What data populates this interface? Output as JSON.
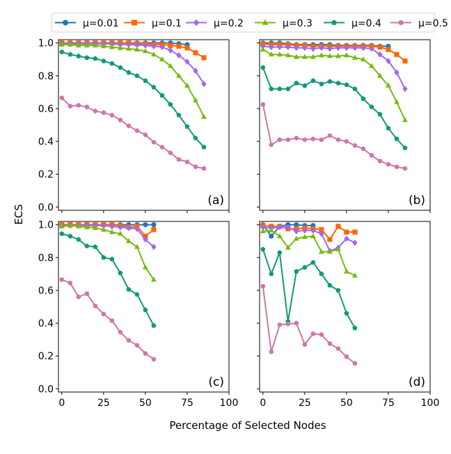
{
  "figure": {
    "ylabel": "ECS",
    "xlabel": "Percentage of Selected Nodes"
  },
  "legend": {
    "items": [
      {
        "label": "μ=0.01",
        "color": "#1f77b4",
        "marker": "circle"
      },
      {
        "label": "μ=0.1",
        "color": "#ff6600",
        "marker": "square"
      },
      {
        "label": "μ=0.2",
        "color": "#a066f5",
        "marker": "diamond"
      },
      {
        "label": "μ=0.3",
        "color": "#77bb11",
        "marker": "triangle"
      },
      {
        "label": "μ=0.4",
        "color": "#119977",
        "marker": "pentagon"
      },
      {
        "label": "μ=0.5",
        "color": "#cc77aa",
        "marker": "hexagon"
      }
    ]
  },
  "chart_data": [
    {
      "type": "line",
      "panel_label": "(a)",
      "xlim": [
        -2,
        100
      ],
      "ylim": [
        -0.02,
        1.02
      ],
      "xticks": [
        0,
        25,
        50,
        75,
        100
      ],
      "yticks": [
        0.0,
        0.2,
        0.4,
        0.6,
        0.8,
        1.0
      ],
      "series": [
        {
          "name": "μ=0.01",
          "x": [
            0,
            5,
            10,
            15,
            20,
            25,
            30,
            35,
            40,
            45,
            50,
            55,
            60,
            65,
            70,
            75
          ],
          "y": [
            1.0,
            1.0,
            1.0,
            1.0,
            1.0,
            1.0,
            1.0,
            1.0,
            1.0,
            1.0,
            1.0,
            1.0,
            1.0,
            1.0,
            0.995,
            0.99
          ]
        },
        {
          "name": "μ=0.1",
          "x": [
            0,
            5,
            10,
            15,
            20,
            25,
            30,
            35,
            40,
            45,
            50,
            55,
            60,
            65,
            70,
            75,
            80,
            85
          ],
          "y": [
            1.0,
            1.0,
            1.0,
            1.0,
            1.0,
            1.0,
            1.0,
            1.0,
            1.0,
            0.995,
            0.995,
            0.99,
            0.99,
            0.985,
            0.98,
            0.97,
            0.94,
            0.91
          ]
        },
        {
          "name": "μ=0.2",
          "x": [
            0,
            5,
            10,
            15,
            20,
            25,
            30,
            35,
            40,
            45,
            50,
            55,
            60,
            65,
            70,
            75,
            80,
            85
          ],
          "y": [
            0.995,
            0.995,
            0.995,
            0.995,
            0.995,
            0.995,
            0.995,
            0.99,
            0.99,
            0.99,
            0.985,
            0.98,
            0.975,
            0.955,
            0.925,
            0.885,
            0.83,
            0.75
          ]
        },
        {
          "name": "μ=0.3",
          "x": [
            0,
            5,
            10,
            15,
            20,
            25,
            30,
            35,
            40,
            45,
            50,
            55,
            60,
            65,
            70,
            75,
            80,
            85
          ],
          "y": [
            0.99,
            0.99,
            0.985,
            0.985,
            0.985,
            0.98,
            0.975,
            0.97,
            0.965,
            0.96,
            0.95,
            0.93,
            0.9,
            0.86,
            0.8,
            0.74,
            0.65,
            0.55
          ]
        },
        {
          "name": "μ=0.4",
          "x": [
            0,
            5,
            10,
            15,
            20,
            25,
            30,
            35,
            40,
            45,
            50,
            55,
            60,
            65,
            70,
            75,
            80,
            85
          ],
          "y": [
            0.945,
            0.93,
            0.92,
            0.91,
            0.905,
            0.89,
            0.875,
            0.85,
            0.82,
            0.8,
            0.77,
            0.73,
            0.68,
            0.625,
            0.56,
            0.49,
            0.42,
            0.365
          ]
        },
        {
          "name": "μ=0.5",
          "x": [
            0,
            5,
            10,
            15,
            20,
            25,
            30,
            35,
            40,
            45,
            50,
            55,
            60,
            65,
            70,
            75,
            80,
            85
          ],
          "y": [
            0.665,
            0.615,
            0.62,
            0.61,
            0.585,
            0.575,
            0.56,
            0.53,
            0.495,
            0.465,
            0.44,
            0.395,
            0.365,
            0.33,
            0.29,
            0.275,
            0.245,
            0.235
          ]
        }
      ]
    },
    {
      "type": "line",
      "panel_label": "(b)",
      "xlim": [
        -2,
        100
      ],
      "ylim": [
        -0.02,
        1.02
      ],
      "xticks": [
        0,
        25,
        50,
        75,
        100
      ],
      "yticks": [
        0.0,
        0.2,
        0.4,
        0.6,
        0.8,
        1.0
      ],
      "series": [
        {
          "name": "μ=0.01",
          "x": [
            0,
            5,
            10,
            15,
            20,
            25,
            30,
            35,
            40,
            45,
            50,
            55,
            60,
            65,
            70,
            75
          ],
          "y": [
            1.0,
            1.0,
            1.0,
            0.995,
            0.99,
            0.99,
            0.99,
            0.99,
            0.99,
            0.985,
            0.985,
            0.985,
            0.985,
            0.985,
            0.98,
            0.98
          ]
        },
        {
          "name": "μ=0.1",
          "x": [
            0,
            5,
            10,
            15,
            20,
            25,
            30,
            35,
            40,
            45,
            50,
            55,
            60,
            65,
            70,
            75,
            80,
            85
          ],
          "y": [
            0.995,
            0.99,
            0.99,
            0.99,
            0.985,
            0.985,
            0.98,
            0.98,
            0.98,
            0.98,
            0.98,
            0.98,
            0.98,
            0.98,
            0.975,
            0.96,
            0.93,
            0.89
          ]
        },
        {
          "name": "μ=0.2",
          "x": [
            0,
            5,
            10,
            15,
            20,
            25,
            30,
            35,
            40,
            45,
            50,
            55,
            60,
            65,
            70,
            75,
            80,
            85
          ],
          "y": [
            0.98,
            0.975,
            0.975,
            0.975,
            0.97,
            0.97,
            0.965,
            0.97,
            0.965,
            0.97,
            0.97,
            0.97,
            0.97,
            0.965,
            0.93,
            0.89,
            0.82,
            0.72
          ]
        },
        {
          "name": "μ=0.3",
          "x": [
            0,
            5,
            10,
            15,
            20,
            25,
            30,
            35,
            40,
            45,
            50,
            55,
            60,
            65,
            70,
            75,
            80,
            85
          ],
          "y": [
            0.96,
            0.93,
            0.93,
            0.925,
            0.915,
            0.915,
            0.915,
            0.925,
            0.92,
            0.92,
            0.925,
            0.91,
            0.9,
            0.86,
            0.8,
            0.74,
            0.64,
            0.53
          ]
        },
        {
          "name": "μ=0.4",
          "x": [
            0,
            5,
            10,
            15,
            20,
            25,
            30,
            35,
            40,
            45,
            50,
            55,
            60,
            65,
            70,
            75,
            80,
            85
          ],
          "y": [
            0.85,
            0.72,
            0.72,
            0.72,
            0.755,
            0.74,
            0.77,
            0.75,
            0.765,
            0.755,
            0.745,
            0.72,
            0.66,
            0.61,
            0.565,
            0.48,
            0.415,
            0.36
          ]
        },
        {
          "name": "μ=0.5",
          "x": [
            0,
            5,
            10,
            15,
            20,
            25,
            30,
            35,
            40,
            45,
            50,
            55,
            60,
            65,
            70,
            75,
            80,
            85
          ],
          "y": [
            0.625,
            0.38,
            0.41,
            0.41,
            0.42,
            0.41,
            0.415,
            0.41,
            0.435,
            0.41,
            0.4,
            0.375,
            0.355,
            0.315,
            0.28,
            0.26,
            0.245,
            0.235
          ]
        }
      ]
    },
    {
      "type": "line",
      "panel_label": "(c)",
      "xlim": [
        -2,
        100
      ],
      "ylim": [
        -0.02,
        1.02
      ],
      "xticks": [
        0,
        25,
        50,
        75,
        100
      ],
      "yticks": [
        0.0,
        0.2,
        0.4,
        0.6,
        0.8,
        1.0
      ],
      "series": [
        {
          "name": "μ=0.01",
          "x": [
            0,
            5,
            10,
            15,
            20,
            25,
            30,
            35,
            40,
            45,
            50,
            55
          ],
          "y": [
            1.0,
            1.0,
            1.0,
            1.0,
            1.0,
            1.0,
            1.0,
            1.0,
            1.0,
            1.0,
            1.0,
            1.0
          ]
        },
        {
          "name": "μ=0.1",
          "x": [
            0,
            5,
            10,
            15,
            20,
            25,
            30,
            35,
            40,
            45,
            50,
            55
          ],
          "y": [
            1.0,
            1.0,
            1.0,
            1.0,
            1.0,
            1.0,
            1.0,
            0.995,
            0.985,
            0.99,
            0.93,
            0.97
          ]
        },
        {
          "name": "μ=0.2",
          "x": [
            0,
            5,
            10,
            15,
            20,
            25,
            30,
            35,
            40,
            45,
            50,
            55
          ],
          "y": [
            0.995,
            0.995,
            0.995,
            0.995,
            0.995,
            0.995,
            0.99,
            0.985,
            0.98,
            0.975,
            0.91,
            0.865
          ]
        },
        {
          "name": "μ=0.3",
          "x": [
            0,
            5,
            10,
            15,
            20,
            25,
            30,
            35,
            40,
            45,
            50,
            55
          ],
          "y": [
            0.99,
            0.995,
            0.99,
            0.985,
            0.98,
            0.97,
            0.955,
            0.945,
            0.9,
            0.865,
            0.74,
            0.665
          ]
        },
        {
          "name": "μ=0.4",
          "x": [
            0,
            5,
            10,
            15,
            20,
            25,
            30,
            35,
            40,
            45,
            50,
            55
          ],
          "y": [
            0.945,
            0.93,
            0.91,
            0.87,
            0.865,
            0.8,
            0.79,
            0.705,
            0.605,
            0.575,
            0.48,
            0.385
          ]
        },
        {
          "name": "μ=0.5",
          "x": [
            0,
            5,
            10,
            15,
            20,
            25,
            30,
            35,
            40,
            45,
            50,
            55
          ],
          "y": [
            0.665,
            0.645,
            0.56,
            0.58,
            0.505,
            0.455,
            0.415,
            0.345,
            0.295,
            0.265,
            0.215,
            0.18
          ]
        }
      ]
    },
    {
      "type": "line",
      "panel_label": "(d)",
      "xlim": [
        -2,
        100
      ],
      "ylim": [
        -0.02,
        1.02
      ],
      "xticks": [
        0,
        25,
        50,
        75,
        100
      ],
      "yticks": [
        0.0,
        0.2,
        0.4,
        0.6,
        0.8,
        1.0
      ],
      "series": [
        {
          "name": "μ=0.01",
          "x": [
            0,
            5,
            10,
            15,
            20,
            25,
            30
          ],
          "y": [
            1.0,
            0.93,
            0.99,
            1.0,
            1.0,
            0.995,
            0.995
          ]
        },
        {
          "name": "μ=0.1",
          "x": [
            0,
            5,
            10,
            15,
            20,
            25,
            30,
            35,
            40,
            45,
            50,
            55
          ],
          "y": [
            0.995,
            0.99,
            0.99,
            0.975,
            0.975,
            0.98,
            0.975,
            0.97,
            0.91,
            0.99,
            0.955,
            0.955
          ]
        },
        {
          "name": "μ=0.2",
          "x": [
            0,
            5,
            10,
            15,
            20,
            25,
            30,
            35,
            40,
            45,
            50,
            55
          ],
          "y": [
            0.985,
            0.98,
            0.985,
            0.985,
            0.96,
            0.965,
            0.965,
            0.945,
            0.84,
            0.86,
            0.915,
            0.89
          ]
        },
        {
          "name": "μ=0.3",
          "x": [
            0,
            5,
            10,
            15,
            20,
            25,
            30,
            35,
            40,
            45,
            50,
            55
          ],
          "y": [
            0.96,
            0.965,
            0.93,
            0.86,
            0.915,
            0.925,
            0.93,
            0.835,
            0.835,
            0.85,
            0.715,
            0.69
          ]
        },
        {
          "name": "μ=0.4",
          "x": [
            0,
            5,
            10,
            15,
            20,
            25,
            30,
            35,
            40,
            45,
            50,
            55
          ],
          "y": [
            0.85,
            0.7,
            0.83,
            0.41,
            0.715,
            0.74,
            0.77,
            0.7,
            0.63,
            0.6,
            0.46,
            0.37
          ]
        },
        {
          "name": "μ=0.5",
          "x": [
            0,
            5,
            10,
            15,
            20,
            25,
            30,
            35,
            40,
            45,
            50,
            55
          ],
          "y": [
            0.625,
            0.225,
            0.39,
            0.395,
            0.4,
            0.27,
            0.335,
            0.33,
            0.275,
            0.245,
            0.195,
            0.155
          ]
        }
      ]
    }
  ]
}
